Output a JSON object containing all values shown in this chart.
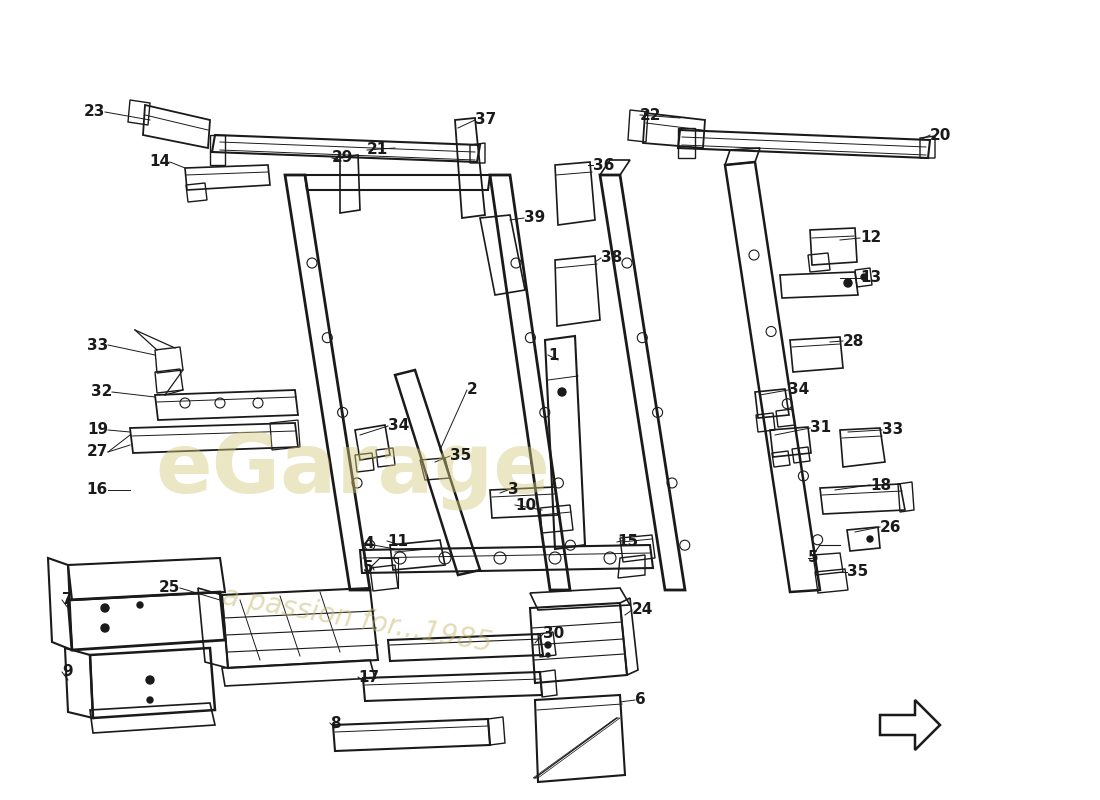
{
  "background_color": "#ffffff",
  "watermark_color_1": "#d4c87a",
  "watermark_color_2": "#c8b86e",
  "label_fontsize": 11,
  "label_fontweight": "bold",
  "line_color": "#1a1a1a",
  "lw_main": 1.4
}
